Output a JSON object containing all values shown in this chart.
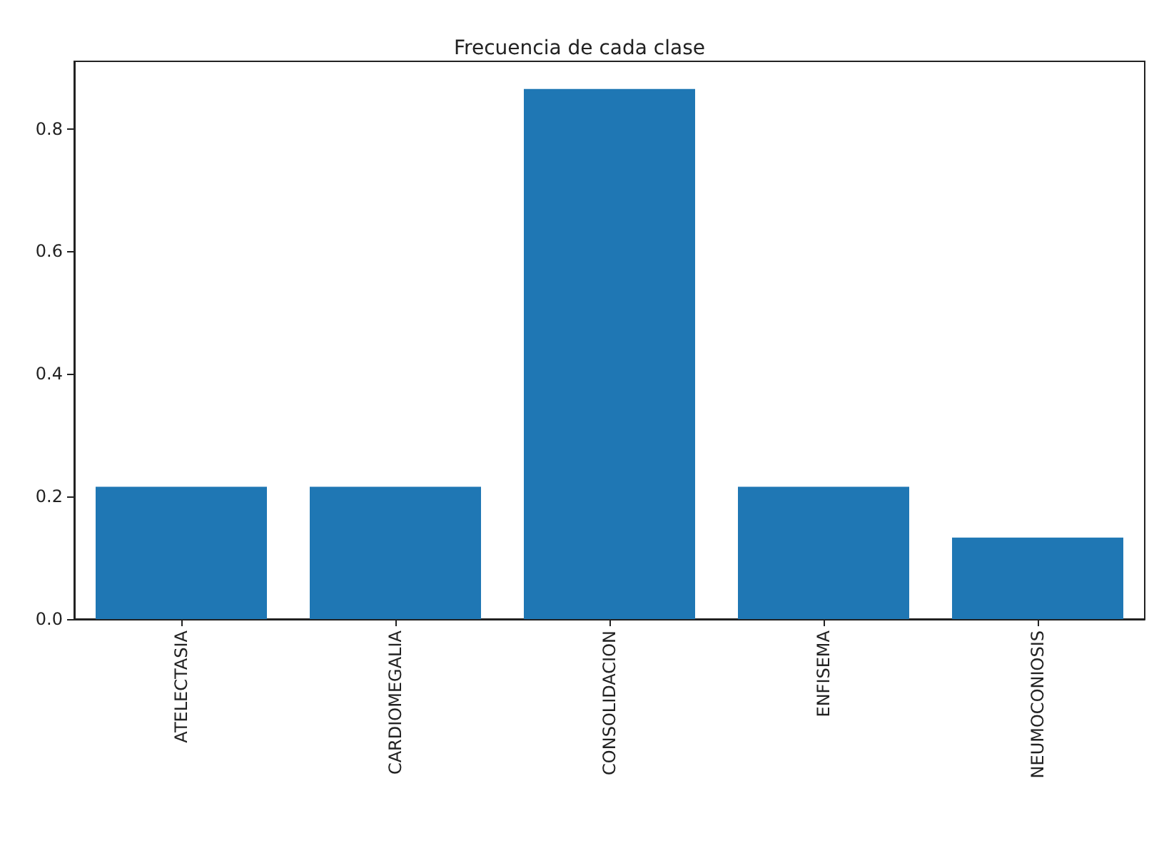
{
  "chart_data": {
    "type": "bar",
    "title": "Frecuencia de cada clase",
    "categories": [
      "ATELECTASIA",
      "CARDIOMEGALIA",
      "CONSOLIDACION",
      "ENFISEMA",
      "NEUMOCONIOSIS"
    ],
    "values": [
      0.216,
      0.216,
      0.865,
      0.216,
      0.133
    ],
    "color": "#1f77b4",
    "ylim": [
      0,
      0.91
    ],
    "yticks": [
      {
        "value": 0,
        "label": "0.0"
      },
      {
        "value": 0.2,
        "label": "0.2"
      },
      {
        "value": 0.4,
        "label": "0.4"
      },
      {
        "value": 0.6,
        "label": "0.6"
      },
      {
        "value": 0.8,
        "label": "0.8"
      }
    ],
    "grid": false
  }
}
